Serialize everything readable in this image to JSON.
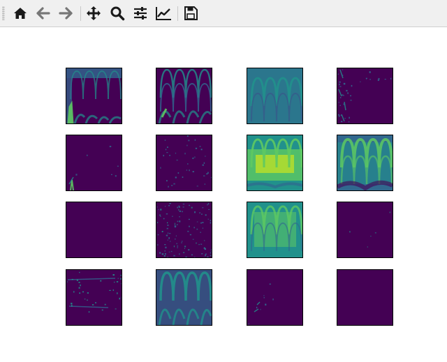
{
  "toolbar": {
    "buttons": [
      {
        "name": "home",
        "icon": "home-icon"
      },
      {
        "name": "back",
        "icon": "arrow-left-icon"
      },
      {
        "name": "forward",
        "icon": "arrow-right-icon"
      },
      {
        "name": "pan",
        "icon": "move-icon"
      },
      {
        "name": "zoom",
        "icon": "magnifier-icon"
      },
      {
        "name": "configure-subplots",
        "icon": "sliders-icon"
      },
      {
        "name": "edit-axis",
        "icon": "line-chart-icon"
      },
      {
        "name": "save",
        "icon": "floppy-icon"
      }
    ]
  },
  "figure": {
    "colormap": "viridis",
    "rows": 4,
    "cols": 4,
    "colors": {
      "background": "#440154",
      "mid": "#31688e",
      "teal": "#21918c",
      "green": "#5ec962",
      "yellow": "#b5de2b"
    },
    "maps": [
      {
        "pattern": "waves-left",
        "intensity": 0.55
      },
      {
        "pattern": "waves-full",
        "intensity": 0.45
      },
      {
        "pattern": "teal-field",
        "intensity": 0.5
      },
      {
        "pattern": "sparse-left",
        "intensity": 0.2
      },
      {
        "pattern": "corner-speck",
        "intensity": 0.15
      },
      {
        "pattern": "sparse-dots",
        "intensity": 0.15
      },
      {
        "pattern": "bright-center",
        "intensity": 0.95
      },
      {
        "pattern": "green-arches",
        "intensity": 0.75
      },
      {
        "pattern": "empty",
        "intensity": 0.0
      },
      {
        "pattern": "speckle",
        "intensity": 0.3
      },
      {
        "pattern": "green-field",
        "intensity": 0.7
      },
      {
        "pattern": "few-dots",
        "intensity": 0.1
      },
      {
        "pattern": "faint-lines",
        "intensity": 0.2
      },
      {
        "pattern": "teal-arches",
        "intensity": 0.5
      },
      {
        "pattern": "bottom-speck",
        "intensity": 0.15
      },
      {
        "pattern": "empty",
        "intensity": 0.0
      }
    ]
  }
}
